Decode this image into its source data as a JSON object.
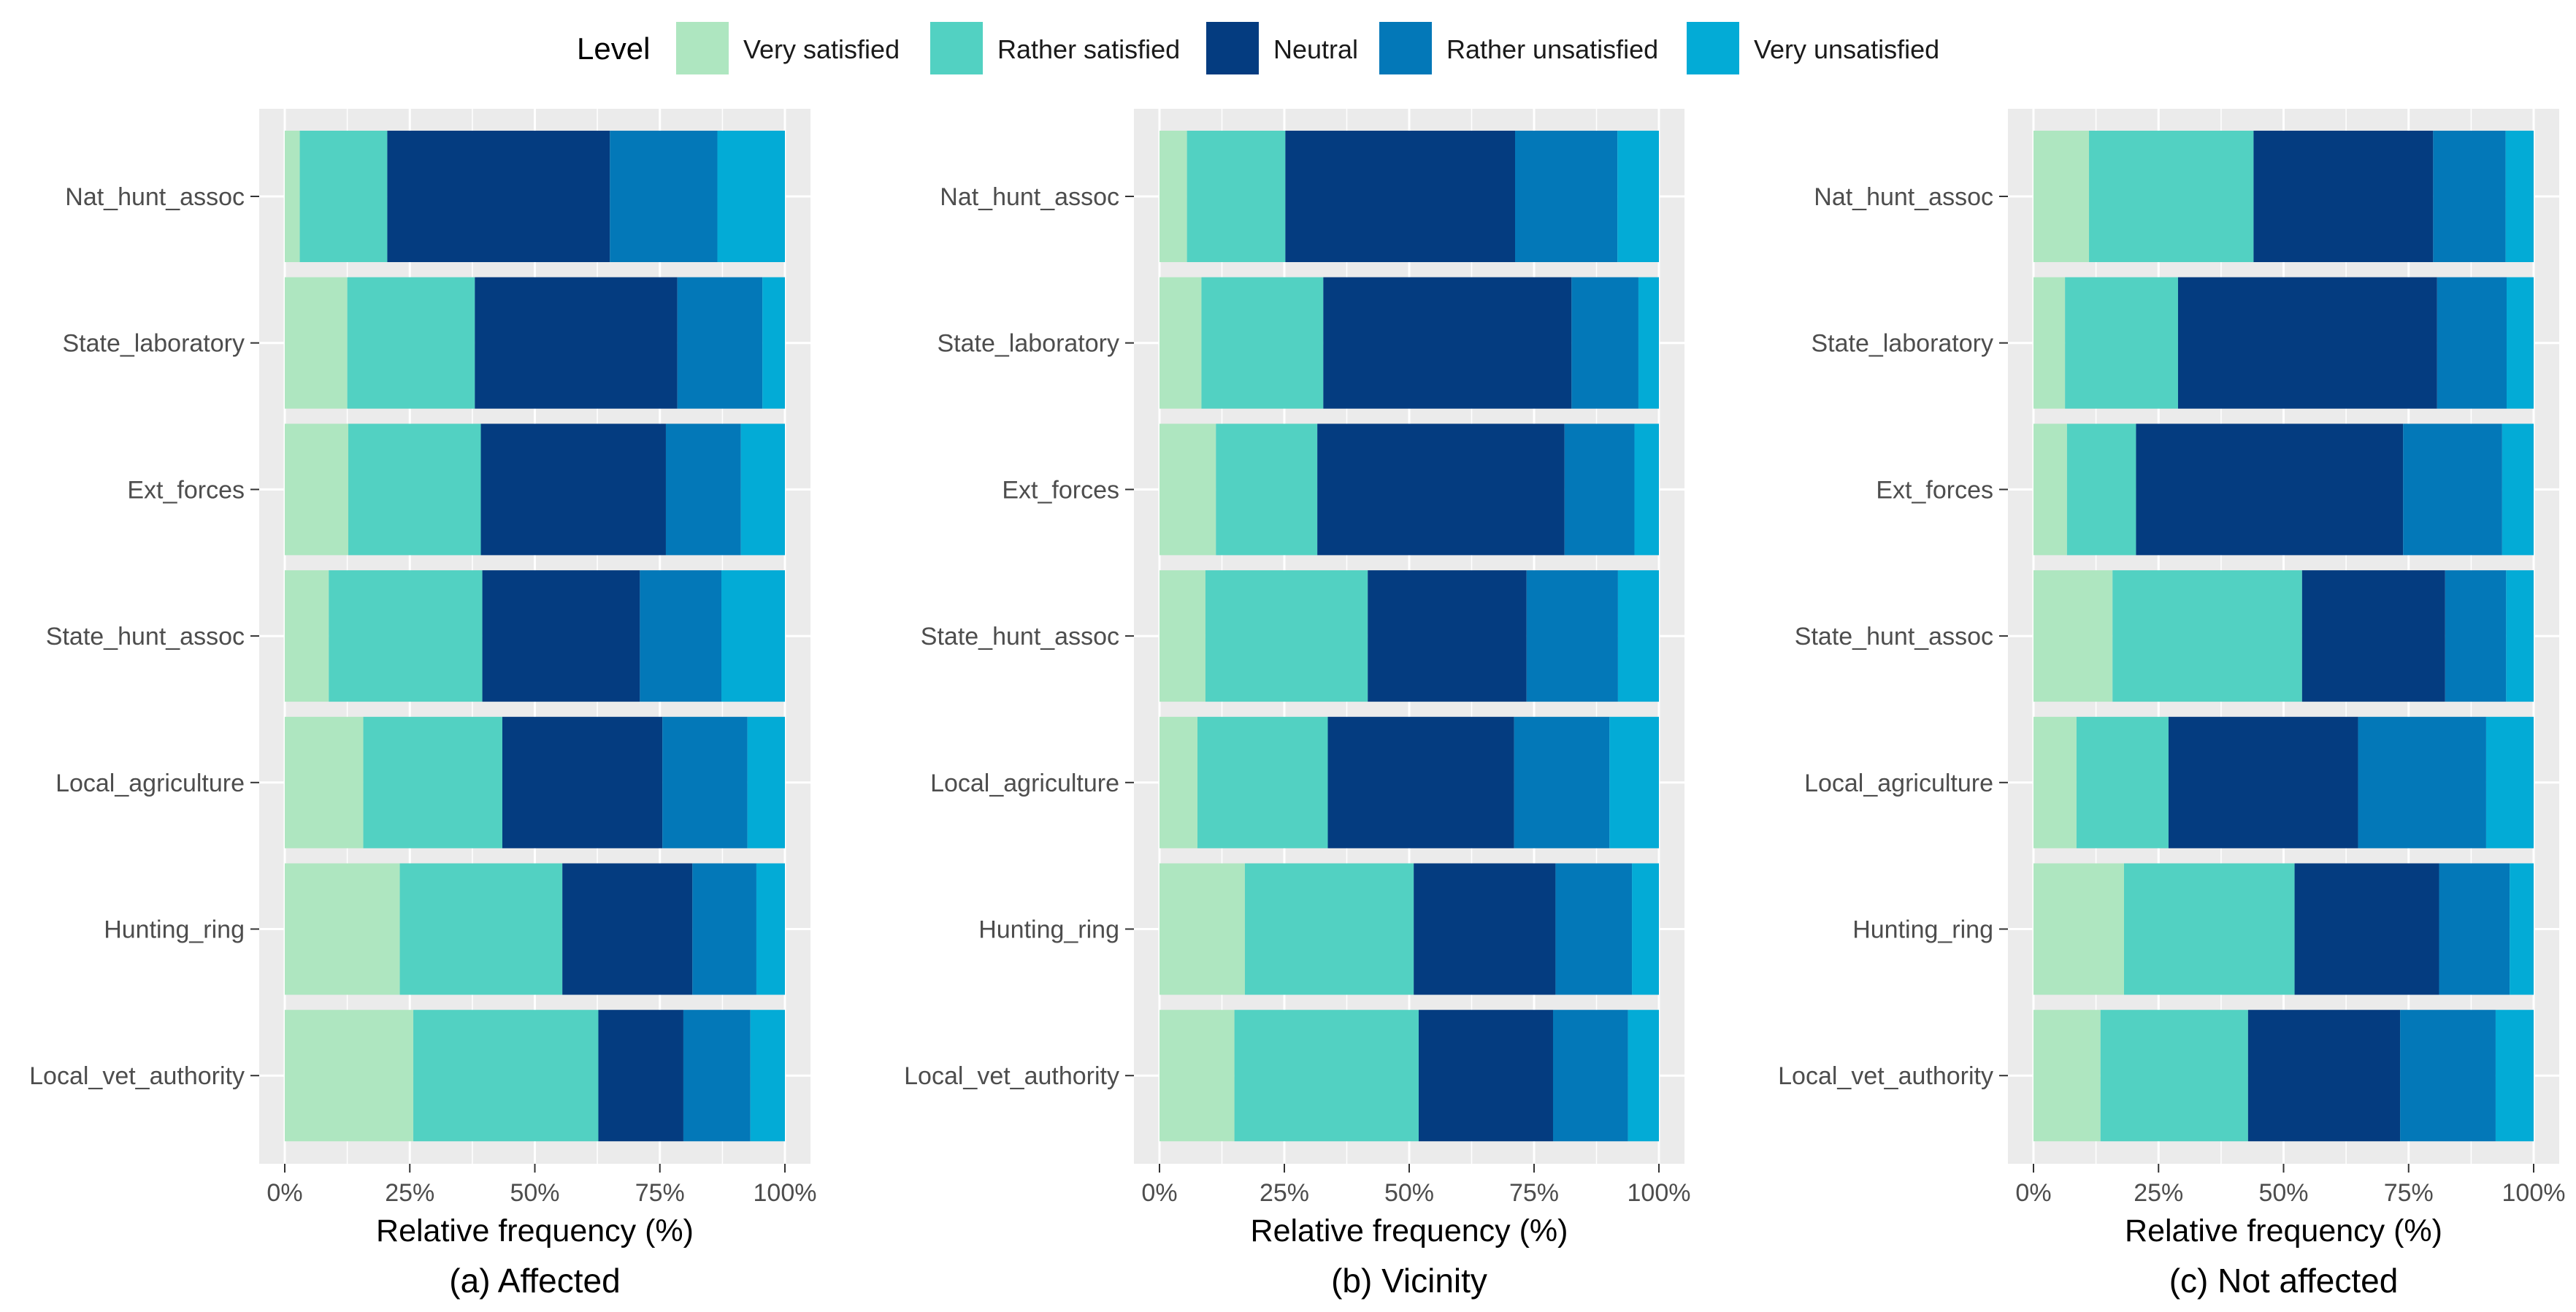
{
  "chart_data": {
    "type": "bar",
    "orientation": "horizontal",
    "stacked": true,
    "normalized": true,
    "legend": {
      "title": "Level",
      "position": "top",
      "entries": [
        "Very satisfied",
        "Rather satisfied",
        "Neutral",
        "Rather unsatisfied",
        "Very unsatisfied"
      ]
    },
    "colors": {
      "Very satisfied": "#aee6c0",
      "Rather satisfied": "#52d1c2",
      "Neutral": "#043c80",
      "Rather unsatisfied": "#0378b8",
      "Very unsatisfied": "#03abd6",
      "panel_background": "#ebebeb",
      "gridline": "#ffffff"
    },
    "categories": [
      "Nat_hunt_assoc",
      "State_laboratory",
      "Ext_forces",
      "State_hunt_assoc",
      "Local_agriculture",
      "Hunting_ring",
      "Local_vet_authority"
    ],
    "xlabel": "Relative frequency (%)",
    "xlim": [
      0,
      100
    ],
    "xticks": [
      {
        "value": 0,
        "label": "0%"
      },
      {
        "value": 25,
        "label": "25%"
      },
      {
        "value": 50,
        "label": "50%"
      },
      {
        "value": 75,
        "label": "75%"
      },
      {
        "value": 100,
        "label": "100%"
      }
    ],
    "panels": [
      {
        "caption": "(a) Affected",
        "segments_percent": [
          [
            3,
            17.5,
            44.5,
            21.5,
            13.5
          ],
          [
            12.5,
            25.5,
            40.5,
            17,
            4.5
          ],
          [
            12.7,
            26.5,
            37,
            15,
            8.8
          ],
          [
            8.8,
            30.7,
            31.5,
            16.3,
            12.7
          ],
          [
            15.7,
            27.8,
            32,
            17,
            7.5
          ],
          [
            23,
            32.5,
            26,
            12.8,
            5.7
          ],
          [
            25.7,
            37,
            17,
            13.4,
            6.9
          ]
        ]
      },
      {
        "caption": "(b) Vicinity",
        "segments_percent": [
          [
            5.5,
            19.7,
            46,
            20.5,
            8.3
          ],
          [
            8.4,
            24.4,
            49.7,
            13.4,
            4.1
          ],
          [
            11.3,
            20.3,
            49.5,
            14,
            4.9
          ],
          [
            9.2,
            32.5,
            31.8,
            18.3,
            8.2
          ],
          [
            7.6,
            26.1,
            37.3,
            19.1,
            9.9
          ],
          [
            17.1,
            33.8,
            28.4,
            15.3,
            5.4
          ],
          [
            15,
            36.9,
            26.9,
            15,
            6.2
          ]
        ]
      },
      {
        "caption": "(c) Not affected",
        "segments_percent": [
          [
            11.1,
            32.9,
            35.9,
            14.5,
            5.6
          ],
          [
            6.3,
            22.6,
            51.8,
            13.9,
            5.4
          ],
          [
            6.7,
            13.8,
            53.4,
            19.8,
            6.3
          ],
          [
            15.8,
            37.9,
            28.6,
            12.2,
            5.5
          ],
          [
            8.6,
            18.4,
            37.9,
            25.6,
            9.5
          ],
          [
            18.1,
            34.1,
            28.9,
            14.1,
            4.8
          ],
          [
            13.4,
            29.5,
            30.4,
            19.1,
            7.6
          ]
        ]
      }
    ]
  }
}
